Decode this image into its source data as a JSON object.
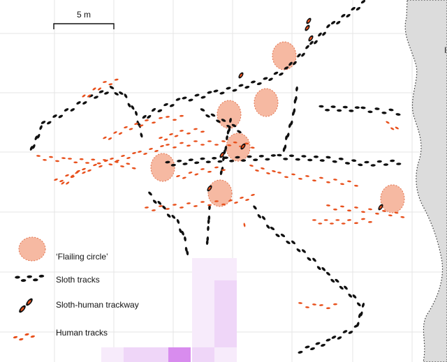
{
  "scale_bar": {
    "label": "5 m"
  },
  "legend": {
    "flailing": "‘Flailing circle’",
    "sloth": "Sloth tracks",
    "sloth_human": "Sloth-human trackway",
    "human": "Human tracks"
  },
  "colors": {
    "sloth": "#111111",
    "human": "#e8501c",
    "circle_fill": "#f6b9a2",
    "circle_stroke": "#e2734e",
    "grid": "#e4e4e4",
    "boundary": "#dcdcdc",
    "heat": [
      "#f7ebfb",
      "#efd6f8",
      "#e6c0f4",
      "#d88cee"
    ]
  }
}
